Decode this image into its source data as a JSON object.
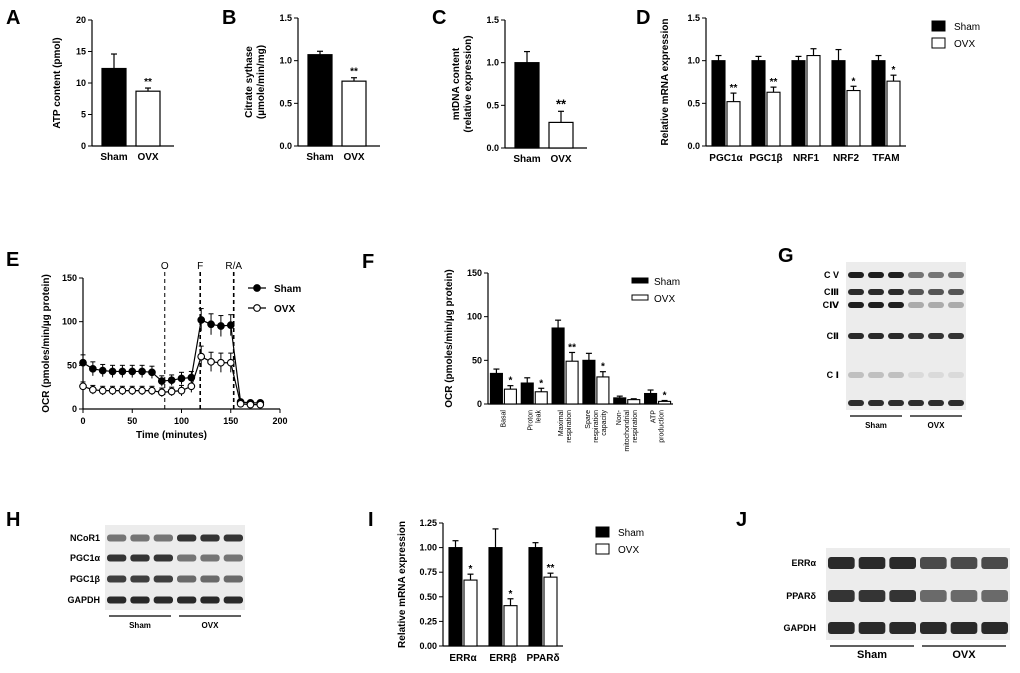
{
  "panels": {
    "A": "A",
    "B": "B",
    "C": "C",
    "D": "D",
    "E": "E",
    "F": "F",
    "G": "G",
    "H": "H",
    "I": "I",
    "J": "J"
  },
  "colors": {
    "sham": "#000000",
    "ovx": "#ffffff",
    "axis": "#000000"
  },
  "chart_data": [
    {
      "panel": "A",
      "type": "bar",
      "categories": [
        "Sham",
        "OVX"
      ],
      "values": [
        12.3,
        8.7
      ],
      "errors": [
        2.3,
        0.5
      ],
      "significance": [
        "",
        "**"
      ],
      "ylabel": "ATP content (pmol)",
      "ylim": [
        0,
        20
      ],
      "yticks": [
        "0",
        "5",
        "10",
        "15",
        "20"
      ]
    },
    {
      "panel": "B",
      "type": "bar",
      "categories": [
        "Sham",
        "OVX"
      ],
      "values": [
        1.07,
        0.76
      ],
      "errors": [
        0.04,
        0.04
      ],
      "significance": [
        "",
        "**"
      ],
      "ylabel": "Citrate sythase\n(µmole/min/mg)",
      "ylim": [
        0,
        1.5
      ],
      "yticks": [
        "0.0",
        "0.5",
        "1.0",
        "1.5"
      ]
    },
    {
      "panel": "C",
      "type": "bar",
      "categories": [
        "Sham",
        "OVX"
      ],
      "values": [
        1.0,
        0.3
      ],
      "errors": [
        0.13,
        0.13
      ],
      "significance": [
        "",
        "**"
      ],
      "ylabel": "mtDNA content\n(relative expression)",
      "ylim": [
        0,
        1.5
      ],
      "yticks": [
        "0.0",
        "0.5",
        "1.0",
        "1.5"
      ]
    },
    {
      "panel": "D",
      "type": "bar",
      "categories": [
        "PGC1α",
        "PGC1β",
        "NRF1",
        "NRF2",
        "TFAM"
      ],
      "series": [
        {
          "name": "Sham",
          "values": [
            1.0,
            1.0,
            1.0,
            1.0,
            1.0
          ],
          "errors": [
            0.06,
            0.05,
            0.05,
            0.13,
            0.06
          ]
        },
        {
          "name": "OVX",
          "values": [
            0.52,
            0.63,
            1.06,
            0.65,
            0.76
          ],
          "errors": [
            0.1,
            0.06,
            0.08,
            0.05,
            0.07
          ]
        }
      ],
      "significance": [
        "**",
        "**",
        "",
        "*",
        "*"
      ],
      "ylabel": "Relative mRNA expression",
      "ylim": [
        0,
        1.5
      ],
      "yticks": [
        "0.0",
        "0.5",
        "1.0",
        "1.5"
      ],
      "legend": "top-right"
    },
    {
      "panel": "E",
      "type": "line",
      "series": [
        {
          "name": "Sham",
          "x": [
            0,
            10,
            20,
            30,
            40,
            50,
            60,
            70,
            80,
            90,
            100,
            110,
            120,
            130,
            140,
            150,
            160,
            170,
            180
          ],
          "y": [
            53,
            46,
            44,
            43,
            43,
            43,
            43,
            42,
            32,
            33,
            35,
            36,
            102,
            97,
            95,
            96,
            8,
            7,
            7
          ],
          "errors": [
            9,
            8,
            7,
            7,
            7,
            7,
            7,
            7,
            6,
            6,
            7,
            7,
            13,
            12,
            12,
            12,
            2,
            2,
            2
          ]
        },
        {
          "name": "OVX",
          "x": [
            0,
            10,
            20,
            30,
            40,
            50,
            60,
            70,
            80,
            90,
            100,
            110,
            120,
            130,
            140,
            150,
            160,
            170,
            180
          ],
          "y": [
            26,
            22,
            21,
            21,
            21,
            21,
            21,
            21,
            19,
            20,
            21,
            26,
            60,
            54,
            53,
            53,
            6,
            5,
            5
          ],
          "errors": [
            5,
            5,
            5,
            5,
            5,
            5,
            5,
            5,
            5,
            5,
            6,
            7,
            12,
            11,
            11,
            11,
            2,
            2,
            2
          ]
        }
      ],
      "injections": [
        {
          "label": "O",
          "x": 83
        },
        {
          "label": "F",
          "x": 119
        },
        {
          "label": "R/A",
          "x": 153
        }
      ],
      "xlabel": "Time (minutes)",
      "ylabel": "OCR (pmoles/min/µg protein)",
      "xlim": [
        0,
        200
      ],
      "ylim": [
        0,
        150
      ],
      "xticks": [
        "0",
        "50",
        "100",
        "150",
        "200"
      ],
      "yticks": [
        "0",
        "50",
        "100",
        "150"
      ],
      "legend": "top-right"
    },
    {
      "panel": "F",
      "type": "bar",
      "categories": [
        "Basal",
        "Proton\nleak",
        "Maximal\nrespiration",
        "Spare\nrespiration\ncapacity",
        "Non-\nmitochondrial\nrespiration",
        "ATP\nproduction"
      ],
      "series": [
        {
          "name": "Sham",
          "values": [
            35,
            24,
            87,
            50,
            7,
            12
          ],
          "errors": [
            5,
            6,
            9,
            8,
            2,
            4
          ]
        },
        {
          "name": "OVX",
          "values": [
            17,
            14,
            49,
            31,
            5,
            3
          ],
          "errors": [
            4,
            4,
            10,
            6,
            1,
            1
          ]
        }
      ],
      "significance": [
        "*",
        "*",
        "**",
        "*",
        "",
        "*"
      ],
      "ylabel": "OCR (pmoles/min/µg protein)",
      "ylim": [
        0,
        150
      ],
      "yticks": [
        "0",
        "50",
        "100",
        "150"
      ],
      "legend": "top-right"
    },
    {
      "panel": "I",
      "type": "bar",
      "categories": [
        "ERRα",
        "ERRβ",
        "PPARδ"
      ],
      "series": [
        {
          "name": "Sham",
          "values": [
            1.0,
            1.0,
            1.0
          ],
          "errors": [
            0.07,
            0.19,
            0.05
          ]
        },
        {
          "name": "OVX",
          "values": [
            0.67,
            0.41,
            0.7
          ],
          "errors": [
            0.06,
            0.07,
            0.04
          ]
        }
      ],
      "significance": [
        "*",
        "*",
        "**"
      ],
      "ylabel": "Relative mRNA expression",
      "ylim": [
        0,
        1.25
      ],
      "yticks": [
        "0.00",
        "0.25",
        "0.50",
        "0.75",
        "1.00",
        "1.25"
      ],
      "legend": "top-right"
    }
  ],
  "blots": {
    "G": {
      "rows": [
        "C V",
        "CⅢ",
        "CⅣ",
        "CⅡ",
        "C Ⅰ"
      ],
      "groups": [
        "Sham",
        "OVX"
      ],
      "sham_intensity": [
        0.95,
        0.9,
        0.95,
        0.9,
        0.2
      ],
      "ovx_intensity": [
        0.55,
        0.7,
        0.3,
        0.85,
        0.08
      ]
    },
    "H": {
      "rows": [
        "NCoR1",
        "PGC1α",
        "PGC1β",
        "GAPDH"
      ],
      "groups": [
        "Sham",
        "OVX"
      ],
      "sham_intensity": [
        0.55,
        0.85,
        0.8,
        0.9
      ],
      "ovx_intensity": [
        0.85,
        0.55,
        0.6,
        0.9
      ]
    },
    "J": {
      "rows": [
        "ERRα",
        "PPARδ",
        "GAPDH"
      ],
      "groups": [
        "Sham",
        "OVX"
      ],
      "sham_intensity": [
        0.9,
        0.85,
        0.9
      ],
      "ovx_intensity": [
        0.75,
        0.6,
        0.9
      ]
    }
  }
}
